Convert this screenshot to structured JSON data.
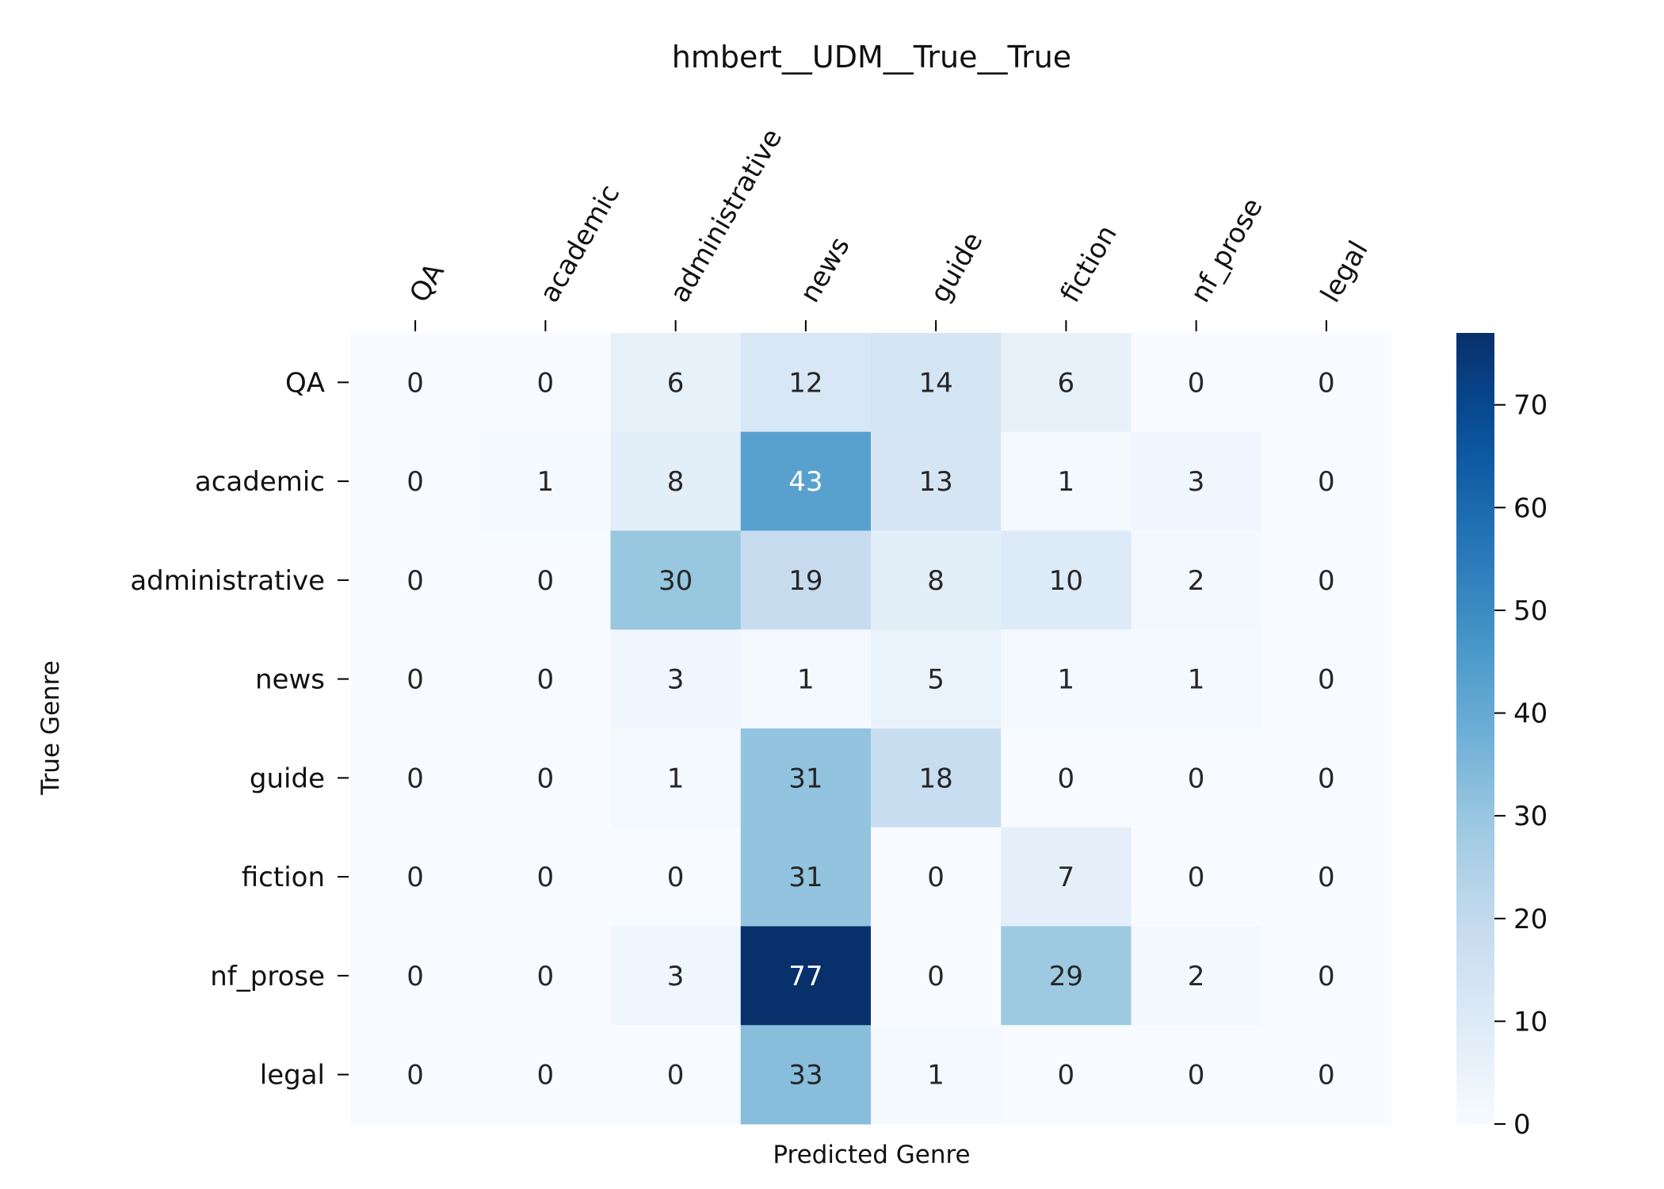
{
  "chart_data": {
    "type": "heatmap",
    "title": "hmbert__UDM__True__True",
    "xlabel": "Predicted Genre",
    "ylabel": "True Genre",
    "x_categories": [
      "QA",
      "academic",
      "administrative",
      "news",
      "guide",
      "fiction",
      "nf_prose",
      "legal"
    ],
    "y_categories": [
      "QA",
      "academic",
      "administrative",
      "news",
      "guide",
      "fiction",
      "nf_prose",
      "legal"
    ],
    "values": [
      [
        0,
        0,
        6,
        12,
        14,
        6,
        0,
        0
      ],
      [
        0,
        1,
        8,
        43,
        13,
        1,
        3,
        0
      ],
      [
        0,
        0,
        30,
        19,
        8,
        10,
        2,
        0
      ],
      [
        0,
        0,
        3,
        1,
        5,
        1,
        1,
        0
      ],
      [
        0,
        0,
        1,
        31,
        18,
        0,
        0,
        0
      ],
      [
        0,
        0,
        0,
        31,
        0,
        7,
        0,
        0
      ],
      [
        0,
        0,
        3,
        77,
        0,
        29,
        2,
        0
      ],
      [
        0,
        0,
        0,
        33,
        1,
        0,
        0,
        0
      ]
    ],
    "colormap": "Blues",
    "vmin": 0,
    "vmax": 77,
    "colorbar_ticks": [
      0,
      10,
      20,
      30,
      40,
      50,
      60,
      70
    ],
    "x_axis_position": "top",
    "grid": false
  }
}
